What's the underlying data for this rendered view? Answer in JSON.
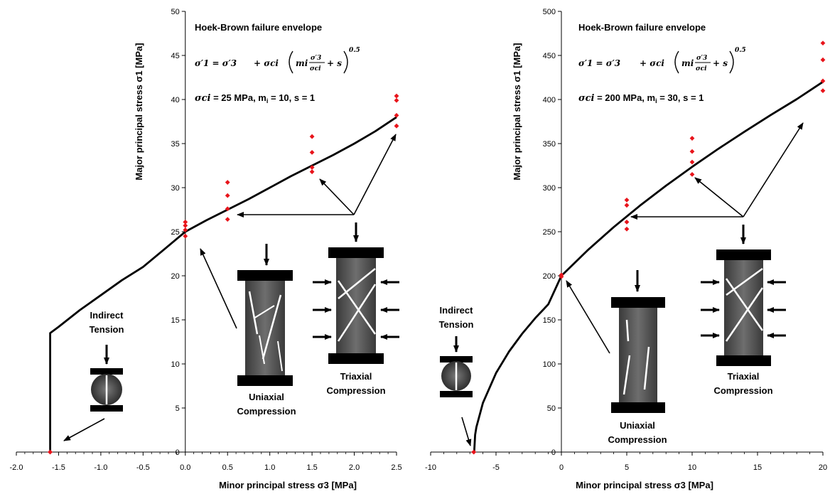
{
  "chart_data": [
    {
      "type": "scatter",
      "panel": "left",
      "title": "Hoek-Brown failure envelope",
      "equation": {
        "lhs": "σ′1 = σ′3",
        "plus1": "+ σci",
        "m": "mi",
        "frac_num": "σ′3",
        "frac_den": "σci",
        "plus_s": "+ s",
        "exponent": "0.5"
      },
      "parameters": "σci = 25 MPa, mi = 10, s = 1",
      "parameters_parts": {
        "sym": "σci",
        "rest": " = 25 MPa, m",
        "sub": "i",
        "rest2": " = 10, s = 1"
      },
      "xlabel": "Minor principal stress σ3  [MPa]",
      "ylabel": "Major principal stress σ1  [MPa]",
      "xlim": [
        -2.0,
        2.5
      ],
      "ylim": [
        0,
        50
      ],
      "xticks": [
        "-2.0",
        "-1.5",
        "-1.0",
        "-0.5",
        "0.0",
        "0.5",
        "1.0",
        "1.5",
        "2.0",
        "2.5"
      ],
      "yticks": [
        "0",
        "5",
        "10",
        "15",
        "20",
        "25",
        "30",
        "35",
        "40",
        "45",
        "50"
      ],
      "series": [
        {
          "type": "scatter",
          "x": [
            -1.6,
            -1.6,
            0.0,
            0.0,
            0.0,
            0.0,
            0.5,
            0.5,
            0.5,
            0.5,
            1.5,
            1.5,
            1.5,
            1.5,
            2.5,
            2.5,
            2.5,
            2.5
          ],
          "y": [
            0,
            0,
            24.5,
            25.2,
            25.7,
            26.1,
            26.4,
            27.6,
            29.1,
            30.6,
            31.8,
            32.3,
            34.0,
            35.8,
            37.0,
            38.2,
            39.9,
            40.4
          ]
        },
        {
          "type": "line",
          "x": [
            -1.6,
            -1.6,
            -1.5,
            -1.25,
            -1.0,
            -0.75,
            -0.5,
            -0.25,
            0.0,
            0.25,
            0.5,
            0.75,
            1.0,
            1.25,
            1.5,
            1.75,
            2.0,
            2.25,
            2.5
          ],
          "y": [
            0,
            13.5,
            14.2,
            16.1,
            17.8,
            19.5,
            21.0,
            23.0,
            25.0,
            26.3,
            27.5,
            28.7,
            30.0,
            31.3,
            32.5,
            33.7,
            35.0,
            36.4,
            38.0
          ]
        }
      ],
      "annotations": {
        "indirect": "Indirect",
        "tension": "Tension",
        "uniaxial": "Uniaxial",
        "triaxial": "Triaxial",
        "compression": "Compression"
      }
    },
    {
      "type": "scatter",
      "panel": "right",
      "title": "Hoek-Brown failure envelope",
      "equation": {
        "lhs": "σ′1 = σ′3",
        "plus1": "+ σci",
        "m": "mi",
        "frac_num": "σ′3",
        "frac_den": "σci",
        "plus_s": "+ s",
        "exponent": "0.5"
      },
      "parameters": "σci = 200 MPa, mi = 30, s = 1",
      "parameters_parts": {
        "sym": "σci",
        "rest": " = 200 MPa, m",
        "sub": "i",
        "rest2": " = 30, s = 1"
      },
      "xlabel": "Minor principal stress σ3  [MPa]",
      "ylabel": "Major principal stress σ1  [MPa]",
      "xlim": [
        -10,
        20
      ],
      "ylim": [
        0,
        500
      ],
      "xticks": [
        "-10",
        "-5",
        "0",
        "5",
        "10",
        "15",
        "20"
      ],
      "yticks": [
        "0",
        "50",
        "100",
        "150",
        "200",
        "250",
        "300",
        "350",
        "400",
        "450",
        "500"
      ],
      "series": [
        {
          "type": "scatter",
          "x": [
            -6.7,
            -6.7,
            0,
            0,
            5,
            5,
            5,
            5,
            10,
            10,
            10,
            10,
            20,
            20,
            20,
            20
          ],
          "y": [
            0,
            0,
            199,
            201,
            253,
            261,
            280,
            286,
            315,
            329,
            341,
            356,
            410,
            421,
            445,
            464
          ]
        },
        {
          "type": "line",
          "x": [
            -6.67,
            -6.6,
            -6.5,
            -6.0,
            -5.0,
            -4.0,
            -3.0,
            -2.0,
            -1.0,
            0,
            2,
            4,
            6,
            8,
            10,
            12,
            14,
            16,
            18,
            20
          ],
          "y": [
            0,
            19.4,
            28.3,
            55.8,
            89.6,
            114.1,
            134.3,
            151.9,
            167.7,
            200,
            228.9,
            255.2,
            279.5,
            302.2,
            323.6,
            344.0,
            363.5,
            382.3,
            400.4,
            420.0
          ]
        }
      ],
      "annotations": {
        "indirect": "Indirect",
        "tension": "Tension",
        "uniaxial": "Uniaxial",
        "triaxial": "Triaxial",
        "compression": "Compression"
      }
    }
  ],
  "colors": {
    "points": "#e8141b",
    "curve": "#000000",
    "specimen_dark": "#2a2a2a",
    "specimen_mid": "#5a5a5a",
    "crack": "#ffffff"
  }
}
